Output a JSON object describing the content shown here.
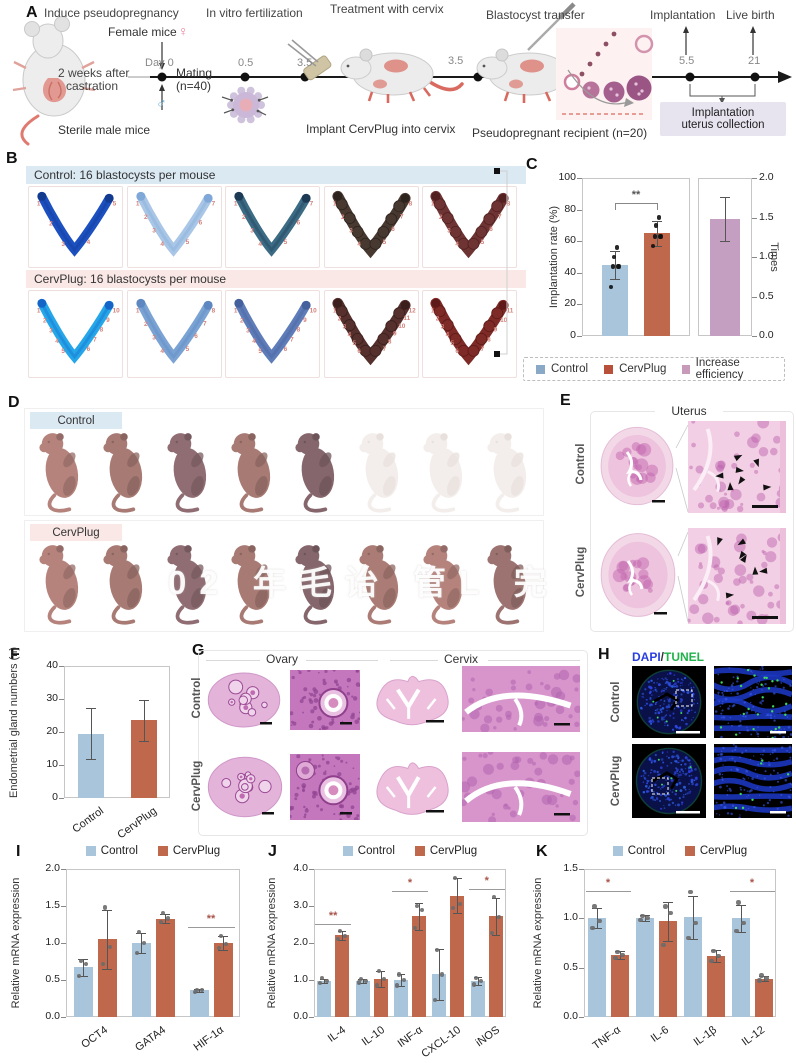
{
  "panel_a": {
    "label": "A",
    "stage_titles": [
      "Induce pseudopregnancy",
      "In vitro fertilization",
      "Treatment with cervix",
      "Blastocyst transfer",
      "Implantation",
      "Live birth"
    ],
    "timeline": {
      "day_label": "Day 0",
      "points": [
        "0.5",
        "3.5",
        "3.5",
        "5.5",
        "21"
      ],
      "mating_line1": "Mating",
      "mating_line2": "(n=40)"
    },
    "annotations": {
      "female_mice": "Female mice",
      "female_symbol": "♀",
      "male_symbol": "♂",
      "castration_line1": "2 weeks after",
      "castration_line2": "castration",
      "sterile_male": "Sterile male mice",
      "implant": "Implant CervPlug into cervix",
      "recipient": "Pseudopregnant recipient (n=20)",
      "collection_line1": "Implantation",
      "collection_line2": "uterus collection"
    }
  },
  "panel_b": {
    "label": "B",
    "control_header": "Control: 16 blastocysts per mouse",
    "cervplug_header": "CervPlug: 16 blastocysts per mouse",
    "header_colors": {
      "control": "#dbe9f3",
      "cervplug": "#f9e8e5"
    },
    "site_number_color": "#d4817a",
    "control_specimens": [
      {
        "colors": [
          "#1c50c0",
          "#123a8e"
        ],
        "sites": 5,
        "beads": false
      },
      {
        "colors": [
          "#a9c6e6",
          "#7fa8d8"
        ],
        "sites": 7,
        "beads": false
      },
      {
        "colors": [
          "#3c6b84",
          "#1d3a55"
        ],
        "sites": 7,
        "beads": false
      },
      {
        "colors": [
          "#473830",
          "#2e241e"
        ],
        "sites": 8,
        "beads": true
      },
      {
        "colors": [
          "#6e3434",
          "#522020"
        ],
        "sites": 8,
        "beads": true
      }
    ],
    "cervplug_specimens": [
      {
        "colors": [
          "#25a6e8",
          "#1565c8"
        ],
        "sites": 10,
        "beads": false
      },
      {
        "colors": [
          "#7aa3d4",
          "#5d87c0"
        ],
        "sites": 8,
        "beads": false
      },
      {
        "colors": [
          "#5e7cb8",
          "#44619e"
        ],
        "sites": 10,
        "beads": false
      },
      {
        "colors": [
          "#55302c",
          "#3a1f1c"
        ],
        "sites": 12,
        "beads": true
      },
      {
        "colors": [
          "#7e2a26",
          "#5e1a18"
        ],
        "sites": 11,
        "beads": true
      }
    ]
  },
  "panel_c": {
    "label": "C",
    "legend": [
      {
        "label": "Control",
        "color": "#8aa9c6"
      },
      {
        "label": "CervPlug",
        "color": "#b9503a"
      },
      {
        "label": "Increase efficiency",
        "color": "#c79ab9"
      }
    ]
  },
  "panel_d": {
    "label": "D",
    "groups": [
      {
        "name": "Control",
        "band_color": "#dbe9f3",
        "pups": [
          "alive",
          "alive",
          "alive",
          "alive",
          "alive",
          "pale",
          "pale",
          "pale"
        ]
      },
      {
        "name": "CervPlug",
        "band_color": "#f9e8e5",
        "pups": [
          "alive",
          "alive",
          "alive",
          "alive",
          "alive",
          "alive",
          "alive",
          "alive"
        ]
      }
    ],
    "watermark": "02 年毛诒 管L 完"
  },
  "panel_e": {
    "label": "E",
    "title": "Uterus",
    "rows": [
      "Control",
      "CervPlug"
    ]
  },
  "panel_f": {
    "label": "F"
  },
  "panel_g": {
    "label": "G",
    "col_titles": [
      "Ovary",
      "Cervix"
    ],
    "rows": [
      "Control",
      "CervPlug"
    ]
  },
  "panel_h": {
    "label": "H",
    "dapi": "DAPI",
    "slash": "/",
    "tunel": "TUNEL",
    "dapi_color": "#2a3fe0",
    "tunel_color": "#21b24c",
    "rows": [
      "Control",
      "CervPlug"
    ]
  },
  "panel_i": {
    "label": "I"
  },
  "panel_j": {
    "label": "J"
  },
  "panel_k": {
    "label": "K"
  },
  "chart_data": [
    {
      "id": "implantation_rate",
      "type": "bar",
      "ylabel": "Implantation rate (%)",
      "ylim": [
        0,
        100
      ],
      "yticks": [
        "0",
        "20",
        "40",
        "60",
        "80",
        "100"
      ],
      "categories": [
        ""
      ],
      "series": [
        {
          "name": "Control",
          "color": "#a9c5db",
          "values": [
            45
          ],
          "errors": [
            9
          ],
          "points": [
            [
              31,
              44,
              44,
              44,
              50,
              56
            ]
          ]
        },
        {
          "name": "CervPlug",
          "color": "#c0684c",
          "values": [
            65
          ],
          "errors": [
            8
          ],
          "points": [
            [
              57,
              63,
              63,
              63,
              70,
              75
            ]
          ]
        }
      ],
      "significance": [
        {
          "cat": 0,
          "s1": 0,
          "s2": 1,
          "label": "**",
          "y": 84,
          "bracket": true
        }
      ],
      "axis_side": "left",
      "legend": false
    },
    {
      "id": "increase_efficiency",
      "type": "bar",
      "ylabel": "Times",
      "ylim": [
        0,
        2
      ],
      "yticks": [
        "0.0",
        "0.5",
        "1.0",
        "1.5",
        "2.0"
      ],
      "categories": [
        ""
      ],
      "series": [
        {
          "name": "Increase efficiency",
          "color": "#c59fc1",
          "values": [
            1.48
          ],
          "errors": [
            0.28
          ]
        }
      ],
      "axis_side": "right",
      "legend": false
    },
    {
      "id": "endometrial_glands",
      "type": "bar",
      "ylabel": "Endometrial gland numbers (n)",
      "ylim": [
        0,
        40
      ],
      "yticks": [
        "0",
        "10",
        "20",
        "30",
        "40"
      ],
      "categories": [
        "Control",
        "CervPlug"
      ],
      "series": [
        {
          "name": "",
          "colors": [
            "#a9c5db",
            "#c0684c"
          ],
          "values": [
            19.5,
            23.5
          ],
          "errors": [
            7.8,
            6.2
          ]
        }
      ],
      "axis_side": "left",
      "legend": false
    },
    {
      "id": "mrna_i",
      "type": "bar",
      "ylabel": "Relative mRNA expression",
      "ylim": [
        0,
        2
      ],
      "yticks": [
        "0.0",
        "0.5",
        "1.0",
        "1.5",
        "2.0"
      ],
      "categories": [
        "OCT4",
        "GATA4",
        "HIF-1α"
      ],
      "series": [
        {
          "name": "Control",
          "color": "#a9c5db",
          "values": [
            0.67,
            1.0,
            0.36
          ],
          "errors": [
            0.11,
            0.14,
            0.02
          ],
          "points": [
            [
              0.55,
              0.72,
              0.76
            ],
            [
              0.87,
              1.0,
              1.15
            ],
            [
              0.34,
              0.36,
              0.37
            ]
          ]
        },
        {
          "name": "CervPlug",
          "color": "#c0684c",
          "values": [
            1.05,
            1.33,
            1.0
          ],
          "errors": [
            0.4,
            0.06,
            0.09
          ],
          "points": [
            [
              0.72,
              0.95,
              1.48
            ],
            [
              1.28,
              1.33,
              1.4
            ],
            [
              0.93,
              0.99,
              1.09
            ]
          ]
        }
      ],
      "significance": [
        {
          "cat": 2,
          "label": "**",
          "y": 1.22
        }
      ],
      "axis_side": "left",
      "legend": true
    },
    {
      "id": "mrna_j",
      "type": "bar",
      "ylabel": "Relative mRNA expression",
      "ylim": [
        0,
        4
      ],
      "yticks": [
        "0.0",
        "1.0",
        "2.0",
        "3.0",
        "4.0"
      ],
      "categories": [
        "IL-4",
        "IL-10",
        "INF-α",
        "CXCL-10",
        "iNOS"
      ],
      "series": [
        {
          "name": "Control",
          "color": "#a9c5db",
          "values": [
            0.97,
            0.98,
            1.0,
            1.15,
            0.97
          ],
          "errors": [
            0.06,
            0.05,
            0.16,
            0.68,
            0.1
          ],
          "points": [
            [
              0.92,
              0.97,
              1.05
            ],
            [
              0.93,
              0.98,
              1.03
            ],
            [
              0.85,
              1.0,
              1.15
            ],
            [
              0.45,
              1.15,
              1.8
            ],
            [
              0.88,
              0.97,
              1.05
            ]
          ]
        },
        {
          "name": "CervPlug",
          "color": "#c0684c",
          "values": [
            2.21,
            1.03,
            2.72,
            3.28,
            2.72
          ],
          "errors": [
            0.12,
            0.22,
            0.36,
            0.47,
            0.5
          ],
          "points": [
            [
              2.1,
              2.2,
              2.32
            ],
            [
              0.85,
              1.03,
              1.25
            ],
            [
              2.4,
              2.9,
              3.0
            ],
            [
              2.95,
              3.05,
              3.75
            ],
            [
              2.28,
              2.7,
              3.24
            ]
          ]
        }
      ],
      "significance": [
        {
          "cat": 0,
          "label": "**",
          "y": 2.52
        },
        {
          "cat": 2,
          "label": "*",
          "y": 3.4
        },
        {
          "cat": 4,
          "label": "*",
          "y": 3.45
        }
      ],
      "axis_side": "left",
      "legend": true
    },
    {
      "id": "mrna_k",
      "type": "bar",
      "ylabel": "Relative mRNA expression",
      "ylim": [
        0,
        1.5
      ],
      "yticks": [
        "0.0",
        "0.5",
        "1.0",
        "1.5"
      ],
      "categories": [
        "TNF-α",
        "IL-6",
        "IL-1β",
        "IL-12"
      ],
      "series": [
        {
          "name": "Control",
          "color": "#a9c5db",
          "values": [
            1.0,
            1.0,
            1.01,
            1.0
          ],
          "errors": [
            0.1,
            0.03,
            0.22,
            0.14
          ],
          "points": [
            [
              0.9,
              0.97,
              1.12
            ],
            [
              0.98,
              1.0,
              1.02
            ],
            [
              0.8,
              0.95,
              1.27
            ],
            [
              0.87,
              0.95,
              1.16
            ]
          ]
        },
        {
          "name": "CervPlug",
          "color": "#c0684c",
          "values": [
            0.63,
            0.97,
            0.62,
            0.39
          ],
          "errors": [
            0.04,
            0.2,
            0.06,
            0.03
          ],
          "points": [
            [
              0.6,
              0.63,
              0.66
            ],
            [
              0.73,
              1.05,
              1.12
            ],
            [
              0.57,
              0.62,
              0.67
            ],
            [
              0.37,
              0.39,
              0.42
            ]
          ]
        }
      ],
      "significance": [
        {
          "cat": 0,
          "label": "*",
          "y": 1.28
        },
        {
          "cat": 3,
          "label": "*",
          "y": 1.28
        }
      ],
      "axis_side": "left",
      "legend": true
    }
  ]
}
